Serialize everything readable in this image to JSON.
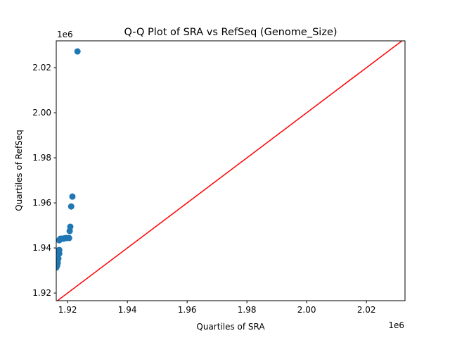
{
  "chart_data": {
    "type": "scatter",
    "title": "Q-Q Plot of SRA vs RefSeq (Genome_Size)",
    "xlabel": "Quartiles of SRA",
    "ylabel": "Quartiles of RefSeq",
    "x_offset_label": "1e6",
    "y_offset_label": "1e6",
    "xlim": [
      1.9162,
      2.0329
    ],
    "ylim": [
      1.9166,
      2.0319
    ],
    "xticks": [
      1.92,
      1.94,
      1.96,
      1.98,
      2.0,
      2.02
    ],
    "xtick_labels": [
      "1.92",
      "1.94",
      "1.96",
      "1.98",
      "2.00",
      "2.02"
    ],
    "yticks": [
      1.92,
      1.94,
      1.96,
      1.98,
      2.0,
      2.02
    ],
    "ytick_labels": [
      "1.92",
      "1.94",
      "1.96",
      "1.98",
      "2.00",
      "2.02"
    ],
    "grid": false,
    "point_color": "#1f77b4",
    "line_color": "#ff0000",
    "reference_line": "y = x",
    "points": [
      [
        1.9162,
        1.9313
      ],
      [
        1.9165,
        1.9322
      ],
      [
        1.9167,
        1.9334
      ],
      [
        1.9169,
        1.9353
      ],
      [
        1.9172,
        1.9375
      ],
      [
        1.9172,
        1.9391
      ],
      [
        1.9172,
        1.9434
      ],
      [
        1.9176,
        1.9441
      ],
      [
        1.9181,
        1.9441
      ],
      [
        1.9186,
        1.9441
      ],
      [
        1.919,
        1.9443
      ],
      [
        1.9195,
        1.9444
      ],
      [
        1.9205,
        1.9444
      ],
      [
        1.9207,
        1.9475
      ],
      [
        1.9209,
        1.9494
      ],
      [
        1.9212,
        1.9584
      ],
      [
        1.9216,
        1.9628
      ],
      [
        1.9233,
        2.0272
      ]
    ]
  }
}
